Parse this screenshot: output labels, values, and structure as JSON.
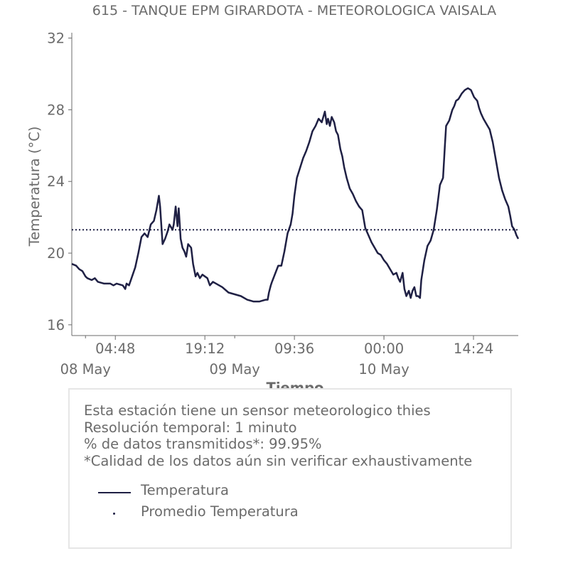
{
  "chart_data": {
    "type": "line",
    "title": "615 - TANQUE EPM GIRARDOTA - METEOROLOGICA VAISALA",
    "xlabel": "Tiempo",
    "ylabel": "Temperatura (°C)",
    "ylim": [
      15.4,
      32.3
    ],
    "y_ticks": [
      "16",
      "20",
      "24",
      "28",
      "32"
    ],
    "y_tick_values": [
      16,
      20,
      24,
      28,
      32
    ],
    "x_ticks": [
      "04:48",
      "19:12",
      "09:36",
      "00:00",
      "14:24"
    ],
    "x_tick_hours": [
      4.8,
      19.2,
      33.6,
      48,
      62.4
    ],
    "x_date_labels": [
      "08 May",
      "09 May",
      "10 May"
    ],
    "x_date_hours": [
      0,
      24,
      48
    ],
    "xlim_hours": [
      -2.2,
      69.6
    ],
    "grid": false,
    "series": [
      {
        "name": "Temperatura",
        "color": "#1f2044",
        "x_hours": [
          -2.2,
          -1.5,
          -1,
          -0.5,
          0,
          0.3,
          1,
          1.5,
          2,
          3,
          4,
          4.5,
          5,
          6,
          6.4,
          6.6,
          7,
          7.6,
          8,
          8.5,
          9,
          9.5,
          10,
          10.5,
          11,
          11.4,
          11.8,
          12,
          12.4,
          12.8,
          13.2,
          13.5,
          14,
          14.2,
          14.5,
          14.8,
          15,
          15.3,
          15.6,
          15.9,
          16.2,
          16.5,
          17,
          17.3,
          17.7,
          18,
          18.4,
          18.8,
          19.2,
          19.6,
          20,
          20.5,
          21,
          22,
          23,
          24,
          25,
          26,
          27,
          28,
          29,
          29.3,
          29.5,
          29.8,
          30,
          31,
          31.5,
          32,
          32.5,
          33,
          33.3,
          33.6,
          34,
          35,
          35.5,
          36,
          36.5,
          37,
          37.5,
          38,
          38.5,
          38.8,
          39,
          39.3,
          39.6,
          40,
          40.3,
          40.6,
          41,
          41.3,
          41.6,
          42,
          42.5,
          43,
          43.5,
          44,
          44.5,
          45,
          45.5,
          46,
          46.5,
          47,
          47.5,
          48,
          48.5,
          49,
          49.5,
          50,
          50.3,
          50.6,
          51,
          51.3,
          51.6,
          52,
          52.3,
          52.6,
          52.9,
          53.2,
          53.5,
          53.8,
          54,
          54.5,
          55,
          55.5,
          56,
          56.5,
          57,
          57.5,
          57.8,
          58,
          58.5,
          59,
          59.3,
          59.6,
          60,
          60.5,
          61,
          61.5,
          62,
          62.5,
          63,
          63.3,
          63.6,
          64,
          64.5,
          65,
          65.5,
          66,
          66.5,
          67,
          67.5,
          68,
          68.3,
          68.6,
          69,
          69.3,
          69.6
        ],
        "values": [
          19.4,
          19.3,
          19.1,
          19,
          18.7,
          18.6,
          18.5,
          18.6,
          18.4,
          18.3,
          18.3,
          18.2,
          18.3,
          18.2,
          18,
          18.3,
          18.2,
          18.8,
          19.2,
          20,
          20.9,
          21.1,
          20.9,
          21.6,
          21.8,
          22.4,
          23.2,
          22.6,
          20.5,
          20.8,
          21.2,
          21.6,
          21.3,
          21.6,
          22.6,
          21.5,
          22.5,
          20.8,
          20.3,
          20.1,
          19.8,
          20.5,
          20.3,
          19.4,
          18.7,
          18.9,
          18.6,
          18.8,
          18.7,
          18.6,
          18.2,
          18.4,
          18.3,
          18.1,
          17.8,
          17.7,
          17.6,
          17.4,
          17.3,
          17.3,
          17.4,
          17.4,
          17.8,
          18.2,
          18.4,
          19.3,
          19.3,
          20.1,
          21.1,
          21.6,
          22.2,
          23.2,
          24.2,
          25.3,
          25.7,
          26.2,
          26.8,
          27.1,
          27.5,
          27.3,
          27.9,
          27.2,
          27.5,
          27.1,
          27.6,
          27.3,
          26.8,
          26.6,
          25.8,
          25.4,
          24.8,
          24.2,
          23.6,
          23.3,
          22.9,
          22.6,
          22.4,
          21.4,
          21,
          20.6,
          20.3,
          20,
          19.9,
          19.6,
          19.4,
          19.1,
          18.8,
          18.9,
          18.6,
          18.4,
          18.9,
          18,
          17.6,
          17.9,
          17.5,
          17.9,
          18.1,
          17.6,
          17.6,
          17.5,
          18.5,
          19.6,
          20.4,
          20.7,
          21.3,
          22.4,
          23.8,
          24.2,
          26,
          27.1,
          27.4,
          28,
          28.2,
          28.5,
          28.6,
          28.9,
          29.1,
          29.2,
          29.1,
          28.7,
          28.5,
          28.1,
          27.8,
          27.5,
          27.2,
          26.9,
          26.2,
          25.2,
          24.2,
          23.5,
          23,
          22.6,
          22.1,
          21.5,
          21.3,
          21,
          20.8
        ],
        "line_width": 2.5
      },
      {
        "name": "Promedio Temperatura",
        "color": "#1f2044",
        "style": "dotted",
        "x_hours": [
          -2.2,
          69.6
        ],
        "values": [
          21.3,
          21.3
        ]
      }
    ],
    "legend_position": "below"
  },
  "info": {
    "lines": [
      "Esta estación tiene un sensor meteorologico thies",
      "Resolución temporal: 1 minuto",
      "% de datos transmitidos*: 99.95%",
      "*Calidad de los datos aún sin verificar exhaustivamente"
    ]
  }
}
